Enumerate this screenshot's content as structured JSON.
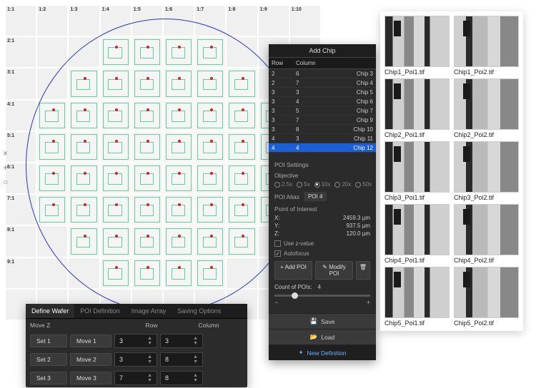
{
  "wafer": {
    "cols": [
      "1:1",
      "1:2",
      "1:3",
      "1:4",
      "1:5",
      "1:6",
      "1:7",
      "1:8",
      "1:9",
      "1:10"
    ],
    "rows": [
      "2:1",
      "3:1",
      "4:1",
      "5:1",
      "6:1",
      "7:1",
      "8:1",
      "9:1"
    ],
    "chip_color": "#5fcfa0",
    "accent_dot": "#d62020",
    "circle_color": "#2838c0"
  },
  "definePanel": {
    "tabs": [
      "Define Wafer",
      "POI Definition",
      "Image Array",
      "Saving Options"
    ],
    "activeTab": 0,
    "headers": {
      "movez": "Move Z",
      "row": "Row",
      "col": "Column"
    },
    "rows": [
      {
        "set": "Set 1",
        "move": "Move 1",
        "row": "3",
        "col": "3"
      },
      {
        "set": "Set 2",
        "move": "Move 2",
        "row": "3",
        "col": "8"
      },
      {
        "set": "Set 3",
        "move": "Move 3",
        "row": "7",
        "col": "8"
      }
    ]
  },
  "poiPanel": {
    "title": "Add Chip",
    "columns": {
      "row": "Row",
      "col": "Column",
      "chip": ""
    },
    "rows": [
      {
        "r": "2",
        "c": "6",
        "chip": "Chip 3"
      },
      {
        "r": "2",
        "c": "7",
        "chip": "Chip 4"
      },
      {
        "r": "3",
        "c": "3",
        "chip": "Chip 5"
      },
      {
        "r": "3",
        "c": "4",
        "chip": "Chip 6"
      },
      {
        "r": "3",
        "c": "5",
        "chip": "Chip 7"
      },
      {
        "r": "3",
        "c": "7",
        "chip": "Chip 9"
      },
      {
        "r": "3",
        "c": "8",
        "chip": "Chip 10"
      },
      {
        "r": "4",
        "c": "3",
        "chip": "Chip 11"
      },
      {
        "r": "4",
        "c": "4",
        "chip": "Chip 12"
      }
    ],
    "selectedIndex": 8,
    "settingsTitle": "POI Settings",
    "objectiveLabel": "Objective",
    "objectives": [
      "2.5x",
      "5x",
      "10x",
      "20x",
      "50x"
    ],
    "objectiveSelected": 2,
    "aliasLabel": "POI Alias",
    "aliasValue": "POI 4",
    "pointLabel": "Point of Interest",
    "x": {
      "label": "X:",
      "value": "2459.3",
      "unit": "µm"
    },
    "y": {
      "label": "Y:",
      "value": "937.5",
      "unit": "µm"
    },
    "z": {
      "label": "Z:",
      "value": "120.0",
      "unit": "µm"
    },
    "usezLabel": "Use z-value",
    "autofocusLabel": "Autofocus",
    "autofocusChecked": true,
    "addBtn": "Add POI",
    "modifyBtn": "Modify POI",
    "countLabel": "Count of POIs:",
    "countValue": "4",
    "saveBtn": "Save",
    "loadBtn": "Load",
    "newDefBtn": "New Definition"
  },
  "thumbs": [
    {
      "name": "Chip1_Poi1.tif",
      "v": 1
    },
    {
      "name": "Chip1_Poi2.tif",
      "v": 2
    },
    {
      "name": "Chip2_Poi1.tif",
      "v": 1
    },
    {
      "name": "Chip2_Poi2.tif",
      "v": 2
    },
    {
      "name": "Chip3_Poi1.tif",
      "v": 1
    },
    {
      "name": "Chip3_Poi2.tif",
      "v": 2
    },
    {
      "name": "Chip4_Poi1.tif",
      "v": 1
    },
    {
      "name": "Chip4_Poi2.tif",
      "v": 2
    },
    {
      "name": "Chip5_Poi1.tif",
      "v": 1
    },
    {
      "name": "Chip5_Poi2.tif",
      "v": 2
    }
  ]
}
